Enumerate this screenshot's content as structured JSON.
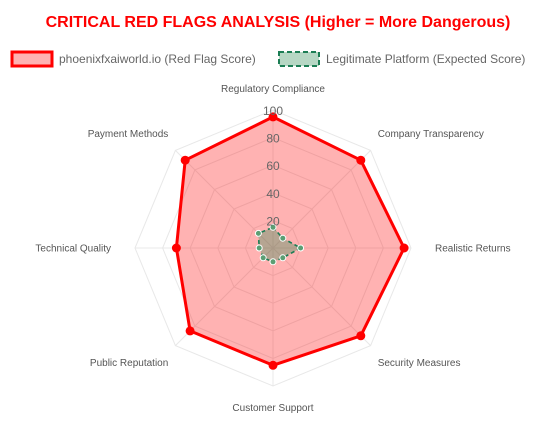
{
  "colors": {
    "title": "#ff0000",
    "red_line": "#ff0000",
    "red_fill": "rgba(255,0,0,0.3)",
    "green_line": "#1b7d54",
    "green_fill": "rgba(46,139,87,0.35)",
    "grid": "#e8e8e8"
  },
  "chart_data": {
    "type": "radar",
    "title": "CRITICAL RED FLAGS ANALYSIS (Higher = More Dangerous)",
    "legend_placement": "top",
    "axes": [
      "Regulatory Compliance",
      "Company Transparency",
      "Realistic Returns",
      "Security Measures",
      "Customer Support",
      "Public Reputation",
      "Technical Quality",
      "Payment Methods"
    ],
    "ticks": [
      20,
      40,
      60,
      80,
      100
    ],
    "rlim": [
      0,
      100
    ],
    "grid": true,
    "series": [
      {
        "name": "phoenixfxaiworld.io (Red Flag Score)",
        "values": [
          95,
          90,
          95,
          90,
          85,
          85,
          70,
          90
        ]
      },
      {
        "name": "Legitimate Platform (Expected Score)",
        "values": [
          15,
          10,
          20,
          10,
          10,
          10,
          10,
          15
        ]
      }
    ]
  }
}
